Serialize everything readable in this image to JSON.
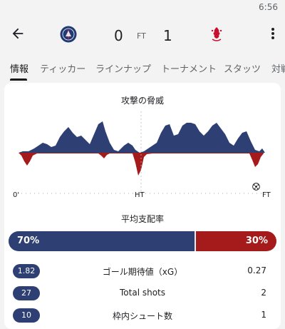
{
  "status_bar": {
    "time": "6:56"
  },
  "match": {
    "home_score": "0",
    "status": "FT",
    "away_score": "1",
    "home_crest": "psg-crest-icon",
    "away_crest": "liverpool-crest-icon"
  },
  "tabs": [
    "情報",
    "ティッカー",
    "ラインナップ",
    "トーナメント",
    "スタッツ",
    "対戦"
  ],
  "threat": {
    "title": "攻撃の脅威",
    "axis": {
      "start": "0'",
      "half": "HT",
      "end": "FT"
    },
    "colors": {
      "home": "#2e3f73",
      "away": "#a51b1b"
    }
  },
  "possession": {
    "title": "平均支配率",
    "home_value": 70,
    "away_value": 30,
    "home_label": "70%",
    "away_label": "30%"
  },
  "stats": [
    {
      "label": "ゴール期待値（xG）",
      "home": "1.82",
      "away": "0.27"
    },
    {
      "label": "Total shots",
      "home": "27",
      "away": "2"
    },
    {
      "label": "枠内シュート数",
      "home": "10",
      "away": "1"
    }
  ]
}
